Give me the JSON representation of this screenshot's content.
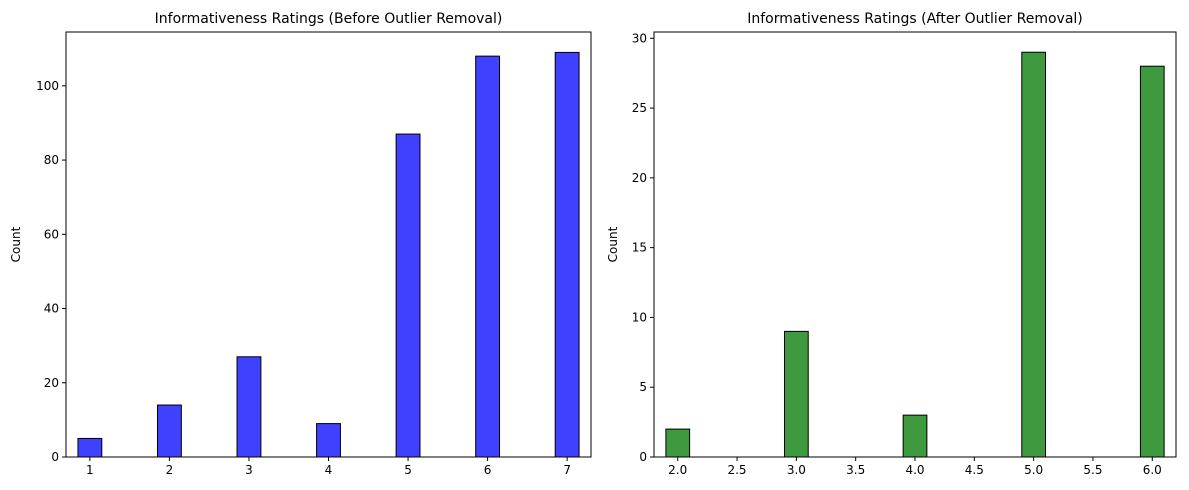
{
  "chart_data": [
    {
      "type": "bar",
      "title": "Informativeness Ratings (Before Outlier Removal)",
      "xlabel": "",
      "ylabel": "Count",
      "x": [
        1,
        2,
        3,
        4,
        5,
        6,
        7
      ],
      "values": [
        5,
        14,
        27,
        9,
        87,
        108,
        109
      ],
      "bin_width": 0.3,
      "xlim": [
        0.7,
        7.3
      ],
      "ylim": [
        0,
        114.5
      ],
      "xticks": [
        1,
        2,
        3,
        4,
        5,
        6,
        7
      ],
      "xtick_labels": [
        "1",
        "2",
        "3",
        "4",
        "5",
        "6",
        "7"
      ],
      "yticks": [
        0,
        20,
        40,
        60,
        80,
        100
      ],
      "ytick_labels": [
        "0",
        "20",
        "40",
        "60",
        "80",
        "100"
      ],
      "color": "#4040ff",
      "edge_color": "#000000",
      "grid": false
    },
    {
      "type": "bar",
      "title": "Informativeness Ratings (After Outlier Removal)",
      "xlabel": "",
      "ylabel": "Count",
      "x": [
        2,
        3,
        4,
        5,
        6
      ],
      "values": [
        2,
        9,
        3,
        29,
        28
      ],
      "bin_width": 0.2,
      "xlim": [
        1.8,
        6.2
      ],
      "ylim": [
        0,
        30.45
      ],
      "xticks": [
        2.0,
        2.5,
        3.0,
        3.5,
        4.0,
        4.5,
        5.0,
        5.5,
        6.0
      ],
      "xtick_labels": [
        "2.0",
        "2.5",
        "3.0",
        "3.5",
        "4.0",
        "4.5",
        "5.0",
        "5.5",
        "6.0"
      ],
      "yticks": [
        0,
        5,
        10,
        15,
        20,
        25,
        30
      ],
      "ytick_labels": [
        "0",
        "5",
        "10",
        "15",
        "20",
        "25",
        "30"
      ],
      "color": "#3f9a3f",
      "edge_color": "#000000",
      "grid": false
    }
  ]
}
